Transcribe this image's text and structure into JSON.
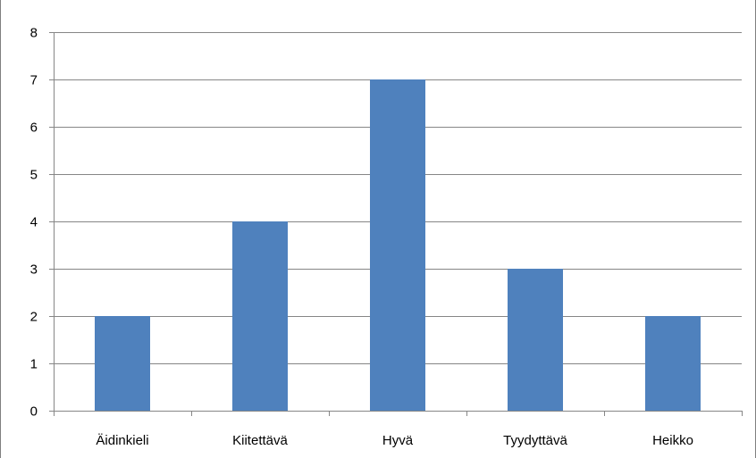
{
  "chart_data": {
    "type": "bar",
    "categories": [
      "Äidinkieli",
      "Kiitettävä",
      "Hyvä",
      "Tyydyttävä",
      "Heikko"
    ],
    "values": [
      2,
      4,
      7,
      3,
      2
    ],
    "title": "",
    "xlabel": "",
    "ylabel": "",
    "ylim": [
      0,
      8
    ],
    "yticks": [
      "0",
      "1",
      "2",
      "3",
      "4",
      "5",
      "6",
      "7",
      "8"
    ],
    "grid": true,
    "legend": "none",
    "bar_color": "#4F81BD",
    "grid_color": "#868686"
  }
}
